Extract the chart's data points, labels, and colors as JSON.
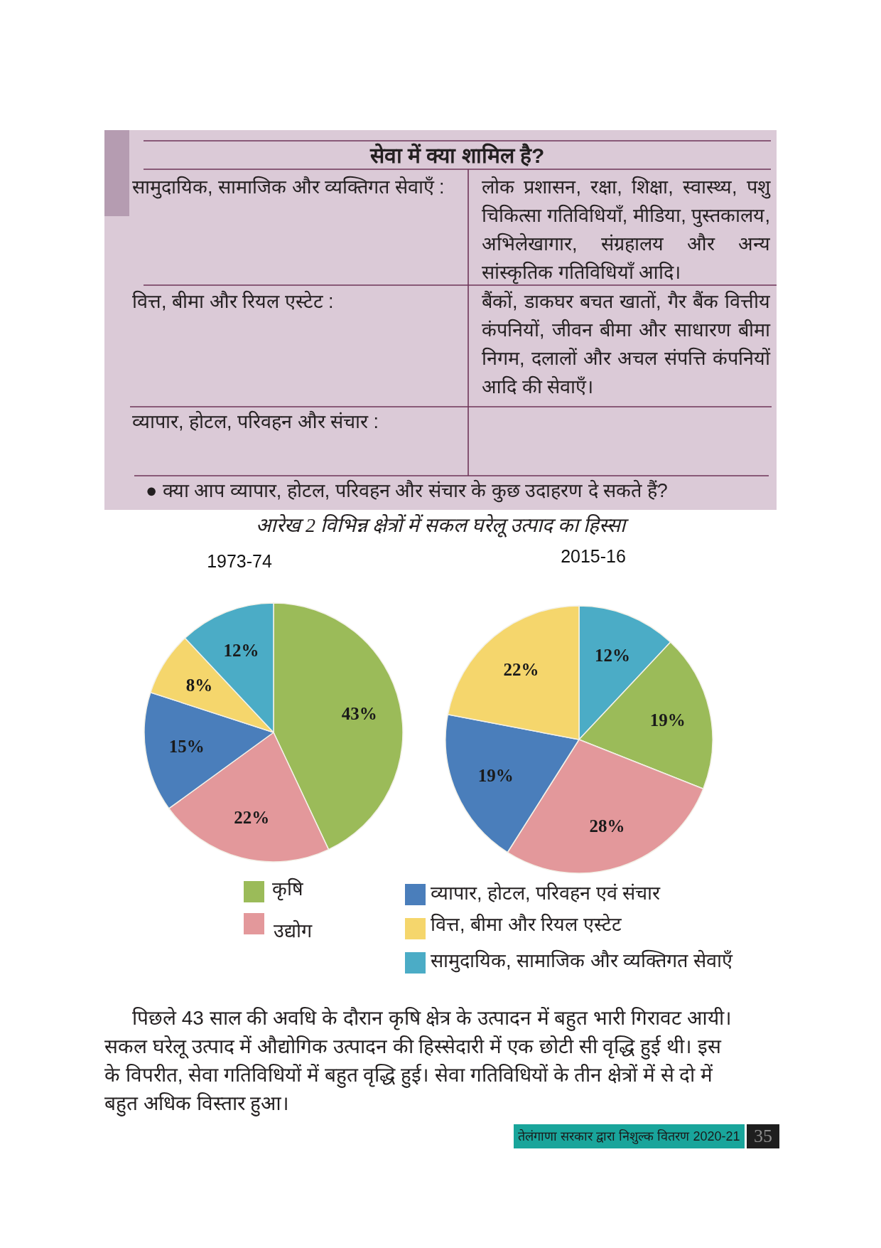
{
  "chart_data": {
    "type": "pie",
    "title": "आरेख 2 विभिन्न क्षेत्रों में सकल घरेलू उत्पाद का हिस्सा",
    "categories": [
      "कृषि",
      "उद्योग",
      "व्यापार, होटल, परिवहन एवं संचार",
      "वित्त, बीमा और रियल एस्टेट",
      "सामुदायिक, सामाजिक और व्यक्तिगत सेवाएँ"
    ],
    "colors": [
      "#9bbb59",
      "#e3989b",
      "#4a7ebb",
      "#f5d66c",
      "#4bacc6"
    ],
    "series": [
      {
        "name": "1973-74",
        "values": [
          43,
          22,
          15,
          8,
          12
        ],
        "value_labels": [
          "43%",
          "22%",
          "15%",
          "8%",
          "12%"
        ]
      },
      {
        "name": "2015-16",
        "values": [
          19,
          28,
          19,
          22,
          12
        ],
        "value_labels": [
          "19%",
          "28%",
          "19%",
          "22%",
          "12%"
        ]
      }
    ],
    "legend": "bottom",
    "annotations": [
      "सेवा में क्या शामिल है?",
      "सामुदायिक, सामाजिक और व्यक्तिगत सेवाएँ :",
      "लोक प्रशासन, रक्षा, शिक्षा, स्वास्थ्य, पशु चिकित्सा गतिविधियाँ, मीडिया, पुस्तकालय, अभिलेखागार, संग्रहालय और अन्य सांस्कृतिक गतिविधियाँ आदि।",
      "वित्त, बीमा और रियल एस्टेट :",
      "बैंकों, डाकघर बचत खातों, गैर बैंक वित्तीय कंपनियों, जीवन बीमा और साधारण बीमा निगम, दलालों और अचल संपत्ति कंपनियों आदि की सेवाएँ।",
      "व्यापार, होटल, परिवहन और संचार :",
      "● क्या आप व्यापार, होटल, परिवहन और संचार के कुछ उदाहरण दे सकते हैं?",
      "पिछले 43 साल की अवधि के दौरान कृषि क्षेत्र के उत्पादन में बहुत भारी गिरावट आयी। सकल घरेलू उत्पाद में औद्योगिक उत्पादन की हिस्सेदारी में एक छोटी सी वृद्धि हुई थी। इस के विपरीत, सेवा गतिविधियों में बहुत वृद्धि हुई। सेवा गतिविधियों के तीन क्षेत्रों में से दो में बहुत अधिक विस्तार हुआ।",
      "तेलंगाणा सरकार द्वारा निशुल्क वितरण 2020-21",
      "35"
    ]
  }
}
